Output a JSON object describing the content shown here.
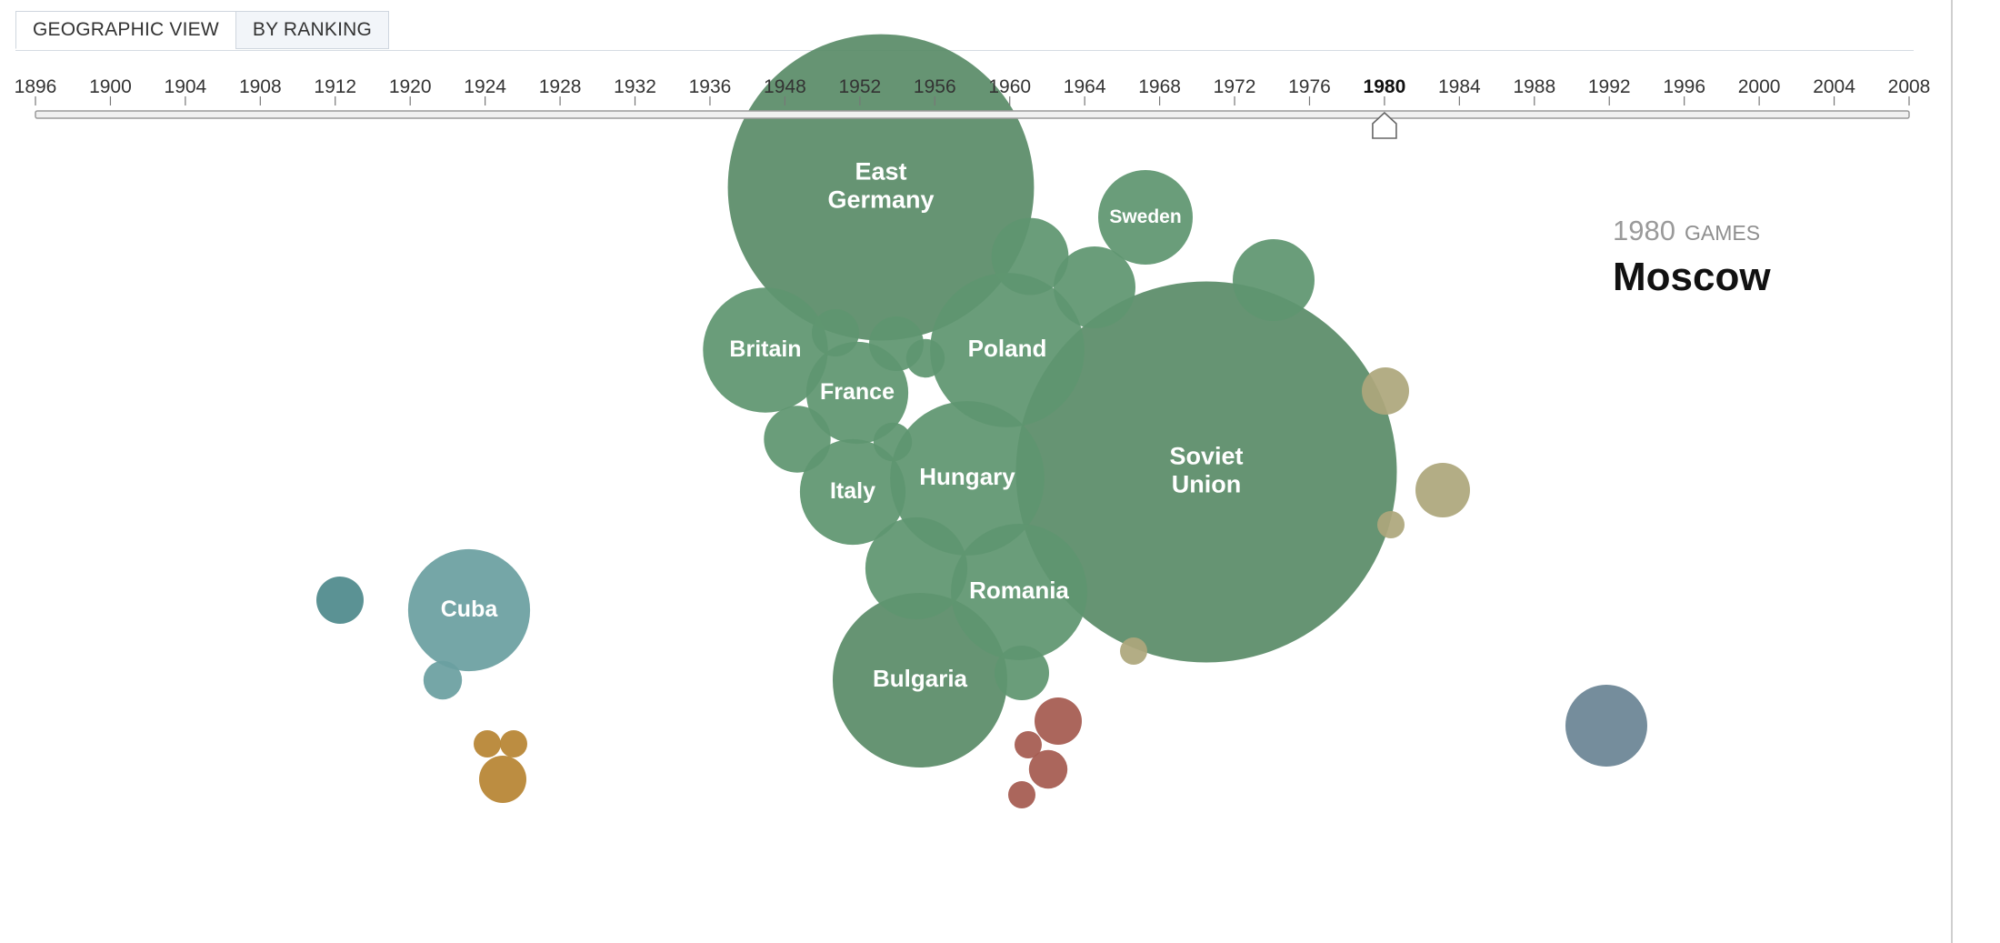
{
  "tabs": [
    {
      "label": "GEOGRAPHIC VIEW",
      "active": true
    },
    {
      "label": "BY RANKING",
      "active": false
    }
  ],
  "timeline": {
    "years": [
      "1896",
      "1900",
      "1904",
      "1908",
      "1912",
      "1920",
      "1924",
      "1928",
      "1932",
      "1936",
      "1948",
      "1952",
      "1956",
      "1960",
      "1964",
      "1968",
      "1972",
      "1976",
      "1980",
      "1984",
      "1988",
      "1992",
      "1996",
      "2000",
      "2004",
      "2008"
    ],
    "selected": "1980"
  },
  "games": {
    "year": "1980",
    "word": "GAMES",
    "city": "Moscow"
  },
  "colors": {
    "europe": "#5f9670",
    "europe_dark": "#5a8c68",
    "asia": "#ada77c",
    "americas": "#6a9fa0",
    "americas_dark": "#4f8a8c",
    "africa": "#b78433",
    "middle_east": "#a55a50",
    "oceania": "#6a8495"
  },
  "chart_data": {
    "type": "bubble",
    "bubbles": [
      {
        "label": "East\nGermany",
        "region": "europe_dark",
        "size": 126
      },
      {
        "label": "Soviet\nUnion",
        "region": "europe_dark",
        "size": 195
      },
      {
        "label": "Bulgaria",
        "region": "europe_dark",
        "size": 41
      },
      {
        "label": "Poland",
        "region": "europe",
        "size": 32
      },
      {
        "label": "Hungary",
        "region": "europe",
        "size": 32
      },
      {
        "label": "Britain",
        "region": "europe",
        "size": 21
      },
      {
        "label": "Romania",
        "region": "europe",
        "size": 25
      },
      {
        "label": "Italy",
        "region": "europe",
        "size": 15
      },
      {
        "label": "France",
        "region": "europe",
        "size": 14
      },
      {
        "label": "Sweden",
        "region": "europe",
        "size": 12
      },
      {
        "label": "",
        "region": "europe",
        "size": 14
      },
      {
        "label": "",
        "region": "europe",
        "size": 8
      },
      {
        "label": "",
        "region": "europe",
        "size": 9
      },
      {
        "label": "",
        "region": "europe",
        "size": 9
      },
      {
        "label": "",
        "region": "europe",
        "size": 6
      },
      {
        "label": "",
        "region": "europe",
        "size": 4
      },
      {
        "label": "",
        "region": "europe",
        "size": 3
      },
      {
        "label": "",
        "region": "europe",
        "size": 2
      },
      {
        "label": "",
        "region": "europe",
        "size": 4
      },
      {
        "label": "",
        "region": "europe",
        "size": 2
      },
      {
        "label": "",
        "region": "asia",
        "size": 3
      },
      {
        "label": "",
        "region": "asia",
        "size": 4
      },
      {
        "label": "",
        "region": "asia",
        "size": 1
      },
      {
        "label": "",
        "region": "asia",
        "size": 1
      },
      {
        "label": "Cuba",
        "region": "americas",
        "size": 20
      },
      {
        "label": "",
        "region": "americas_dark",
        "size": 3
      },
      {
        "label": "",
        "region": "americas",
        "size": 2
      },
      {
        "label": "",
        "region": "africa",
        "size": 3
      },
      {
        "label": "",
        "region": "africa",
        "size": 1
      },
      {
        "label": "",
        "region": "africa",
        "size": 1
      },
      {
        "label": "",
        "region": "middle_east",
        "size": 3
      },
      {
        "label": "",
        "region": "middle_east",
        "size": 2
      },
      {
        "label": "",
        "region": "middle_east",
        "size": 1
      },
      {
        "label": "",
        "region": "middle_east",
        "size": 1
      },
      {
        "label": "",
        "region": "oceania",
        "size": 9
      }
    ]
  }
}
